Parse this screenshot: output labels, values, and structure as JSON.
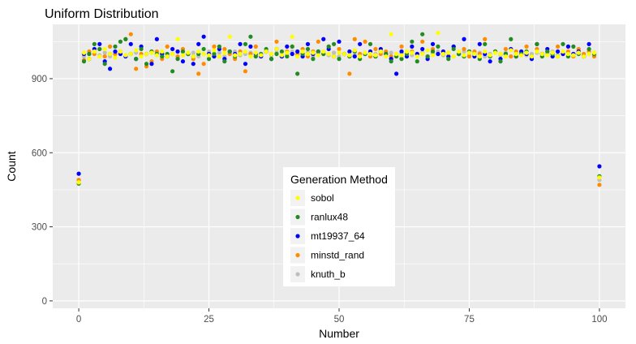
{
  "chart_data": {
    "type": "scatter",
    "title": "Uniform Distribution",
    "xlabel": "Number",
    "ylabel": "Count",
    "xlim": [
      -5,
      105
    ],
    "ylim": [
      -30,
      1120
    ],
    "x_ticks": [
      0,
      25,
      50,
      75,
      100
    ],
    "y_ticks": [
      0,
      300,
      600,
      900
    ],
    "grid": true,
    "legend": {
      "title": "Generation Method",
      "placement": "center-bottom"
    },
    "x": [
      0,
      1,
      2,
      3,
      4,
      5,
      6,
      7,
      8,
      9,
      10,
      11,
      12,
      13,
      14,
      15,
      16,
      17,
      18,
      19,
      20,
      21,
      22,
      23,
      24,
      25,
      26,
      27,
      28,
      29,
      30,
      31,
      32,
      33,
      34,
      35,
      36,
      37,
      38,
      39,
      40,
      41,
      42,
      43,
      44,
      45,
      46,
      47,
      48,
      49,
      50,
      51,
      52,
      53,
      54,
      55,
      56,
      57,
      58,
      59,
      60,
      61,
      62,
      63,
      64,
      65,
      66,
      67,
      68,
      69,
      70,
      71,
      72,
      73,
      74,
      75,
      76,
      77,
      78,
      79,
      80,
      81,
      82,
      83,
      84,
      85,
      86,
      87,
      88,
      89,
      90,
      91,
      92,
      93,
      94,
      95,
      96,
      97,
      98,
      99,
      100
    ],
    "series": [
      {
        "name": "sobol",
        "color": "#ffff00",
        "values": [
          480,
          1005,
          980,
          1010,
          990,
          1020,
          1000,
          985,
          1010,
          995,
          1000,
          1015,
          990,
          1000,
          1005,
          995,
          1010,
          990,
          1000,
          1060,
          995,
          1005,
          990,
          1010,
          1000,
          995,
          1015,
          990,
          1005,
          1070,
          995,
          1000,
          1010,
          990,
          1005,
          995,
          1010,
          1000,
          1020,
          995,
          1005,
          1070,
          990,
          1010,
          1000,
          1005,
          995,
          1010,
          1000,
          990,
          1005,
          1000,
          995,
          1015,
          990,
          1005,
          1000,
          995,
          1010,
          990,
          1080,
          1000,
          995,
          1010,
          1005,
          990,
          1000,
          1015,
          995,
          1085,
          1000,
          1005,
          990,
          1010,
          995,
          1005,
          1000,
          990,
          1010,
          995,
          1005,
          1000,
          990,
          1015,
          1000,
          995,
          1005,
          990,
          1010,
          1000,
          995,
          1005,
          990,
          1010,
          1000,
          995,
          1005,
          990,
          1000,
          1005,
          500
        ]
      },
      {
        "name": "ranlux48",
        "color": "#228b22",
        "values": [
          475,
          970,
          1000,
          1040,
          1020,
          960,
          1000,
          1030,
          1050,
          1060,
          1000,
          980,
          1020,
          960,
          1010,
          1000,
          990,
          1000,
          930,
          980,
          1010,
          1000,
          990,
          1000,
          1020,
          980,
          1000,
          1030,
          970,
          1010,
          990,
          1000,
          1040,
          1070,
          990,
          1000,
          1020,
          980,
          1000,
          1010,
          990,
          1030,
          920,
          1000,
          1020,
          980,
          1010,
          1000,
          1030,
          1040,
          980,
          1000,
          990,
          1010,
          980,
          1000,
          1040,
          990,
          1010,
          1000,
          970,
          990,
          980,
          1000,
          1050,
          970,
          1080,
          990,
          1010,
          1030,
          1000,
          980,
          1020,
          1000,
          990,
          1010,
          1000,
          980,
          1040,
          990,
          1010,
          970,
          1000,
          1060,
          990,
          1000,
          1010,
          990,
          1040,
          990,
          1010,
          1000,
          990,
          1040,
          990,
          1030,
          1000,
          990,
          1020,
          1000,
          505
        ]
      },
      {
        "name": "mt19937_64",
        "color": "#0000ff",
        "values": [
          515,
          1000,
          980,
          1020,
          1040,
          970,
          940,
          1010,
          1000,
          990,
          1040,
          980,
          1030,
          1000,
          960,
          1060,
          1000,
          990,
          1020,
          1010,
          970,
          1000,
          960,
          1040,
          1070,
          1000,
          990,
          1020,
          980,
          1010,
          1000,
          1040,
          960,
          1030,
          1000,
          990,
          1010,
          980,
          1020,
          990,
          1030,
          1000,
          1010,
          990,
          1040,
          1000,
          1010,
          1060,
          1020,
          990,
          1050,
          1000,
          1010,
          990,
          1040,
          1000,
          1010,
          990,
          1020,
          1000,
          980,
          920,
          1010,
          990,
          1030,
          1000,
          1020,
          980,
          1040,
          1000,
          1010,
          990,
          1030,
          1000,
          1060,
          1010,
          990,
          1040,
          1000,
          970,
          1010,
          980,
          1000,
          1020,
          990,
          1010,
          1000,
          980,
          1040,
          1000,
          1020,
          990,
          1010,
          1000,
          1030,
          1000,
          1010,
          990,
          1040,
          1000,
          545
        ]
      },
      {
        "name": "minstd_rand",
        "color": "#ff8c00",
        "values": [
          490,
          975,
          1010,
          1000,
          1020,
          990,
          1030,
          1000,
          1010,
          1060,
          1080,
          940,
          1000,
          950,
          970,
          1010,
          980,
          1030,
          1000,
          990,
          1020,
          1000,
          980,
          920,
          960,
          1000,
          1030,
          990,
          1020,
          1000,
          980,
          1010,
          930,
          1000,
          1030,
          990,
          1010,
          1000,
          1050,
          990,
          1010,
          1030,
          1000,
          1020,
          990,
          1010,
          1050,
          1000,
          1030,
          990,
          1020,
          1000,
          920,
          1060,
          1000,
          1050,
          990,
          1020,
          1000,
          1010,
          990,
          1000,
          1030,
          990,
          1010,
          1000,
          1050,
          990,
          1020,
          1000,
          1010,
          990,
          1030,
          1000,
          1020,
          990,
          1010,
          1000,
          1060,
          990,
          1010,
          1000,
          1020,
          990,
          1010,
          1000,
          1030,
          990,
          1020,
          1000,
          1010,
          990,
          1030,
          1000,
          1010,
          990,
          1020,
          1000,
          1010,
          990,
          470
        ]
      },
      {
        "name": "knuth_b",
        "color": "#bebebe",
        "values": [
          485,
          990,
          1000,
          1010,
          995,
          1005,
          990,
          1000,
          1010,
          995,
          1000,
          1005,
          990,
          1000,
          1010,
          995,
          1005,
          990,
          1000,
          1010,
          995,
          1000,
          1005,
          990,
          1000,
          1010,
          995,
          1005,
          990,
          1000,
          1010,
          995,
          1000,
          1005,
          990,
          1000,
          1010,
          995,
          1005,
          990,
          1000,
          1010,
          995,
          1000,
          1005,
          990,
          1000,
          1010,
          995,
          1005,
          990,
          1000,
          1010,
          995,
          1000,
          1005,
          990,
          1000,
          1010,
          995,
          1005,
          990,
          1000,
          1010,
          995,
          1000,
          1005,
          990,
          1000,
          1010,
          995,
          1005,
          990,
          1000,
          1010,
          995,
          1000,
          1005,
          990,
          1000,
          1010,
          995,
          1005,
          990,
          1000,
          1010,
          995,
          1000,
          1005,
          990,
          1000,
          1010,
          995,
          1005,
          990,
          1000,
          1010,
          995,
          1000,
          1005,
          490
        ]
      }
    ]
  }
}
